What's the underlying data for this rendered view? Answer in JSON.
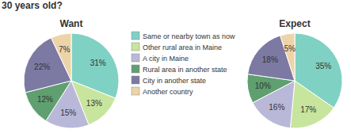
{
  "title": "30 years old?",
  "chart_data": [
    {
      "type": "pie",
      "title": "Want",
      "categories": [
        "Same or nearby town as now",
        "Other rural area in Maine",
        "A city in Maine",
        "Rural area in another state",
        "City in another state",
        "Another country"
      ],
      "values": [
        31,
        13,
        15,
        12,
        22,
        7
      ],
      "value_labels": [
        "31%",
        "13%",
        "15%",
        "12%",
        "22%",
        "7%"
      ],
      "colors": [
        "#7fd1c3",
        "#c8e59e",
        "#bab8d8",
        "#5f9f70",
        "#7c79a3",
        "#edd4a8"
      ],
      "data_labels": true
    },
    {
      "type": "pie",
      "title": "Expect",
      "categories": [
        "Same or nearby town as now",
        "Other rural area in Maine",
        "A city in Maine",
        "Rural area in another state",
        "City in another state",
        "Another country"
      ],
      "values": [
        35,
        17,
        16,
        10,
        18,
        5
      ],
      "value_labels": [
        "35%",
        "17%",
        "16%",
        "10%",
        "18%",
        "5%"
      ],
      "colors": [
        "#7fd1c3",
        "#c8e59e",
        "#bab8d8",
        "#5f9f70",
        "#7c79a3",
        "#edd4a8"
      ],
      "data_labels": true
    }
  ]
}
